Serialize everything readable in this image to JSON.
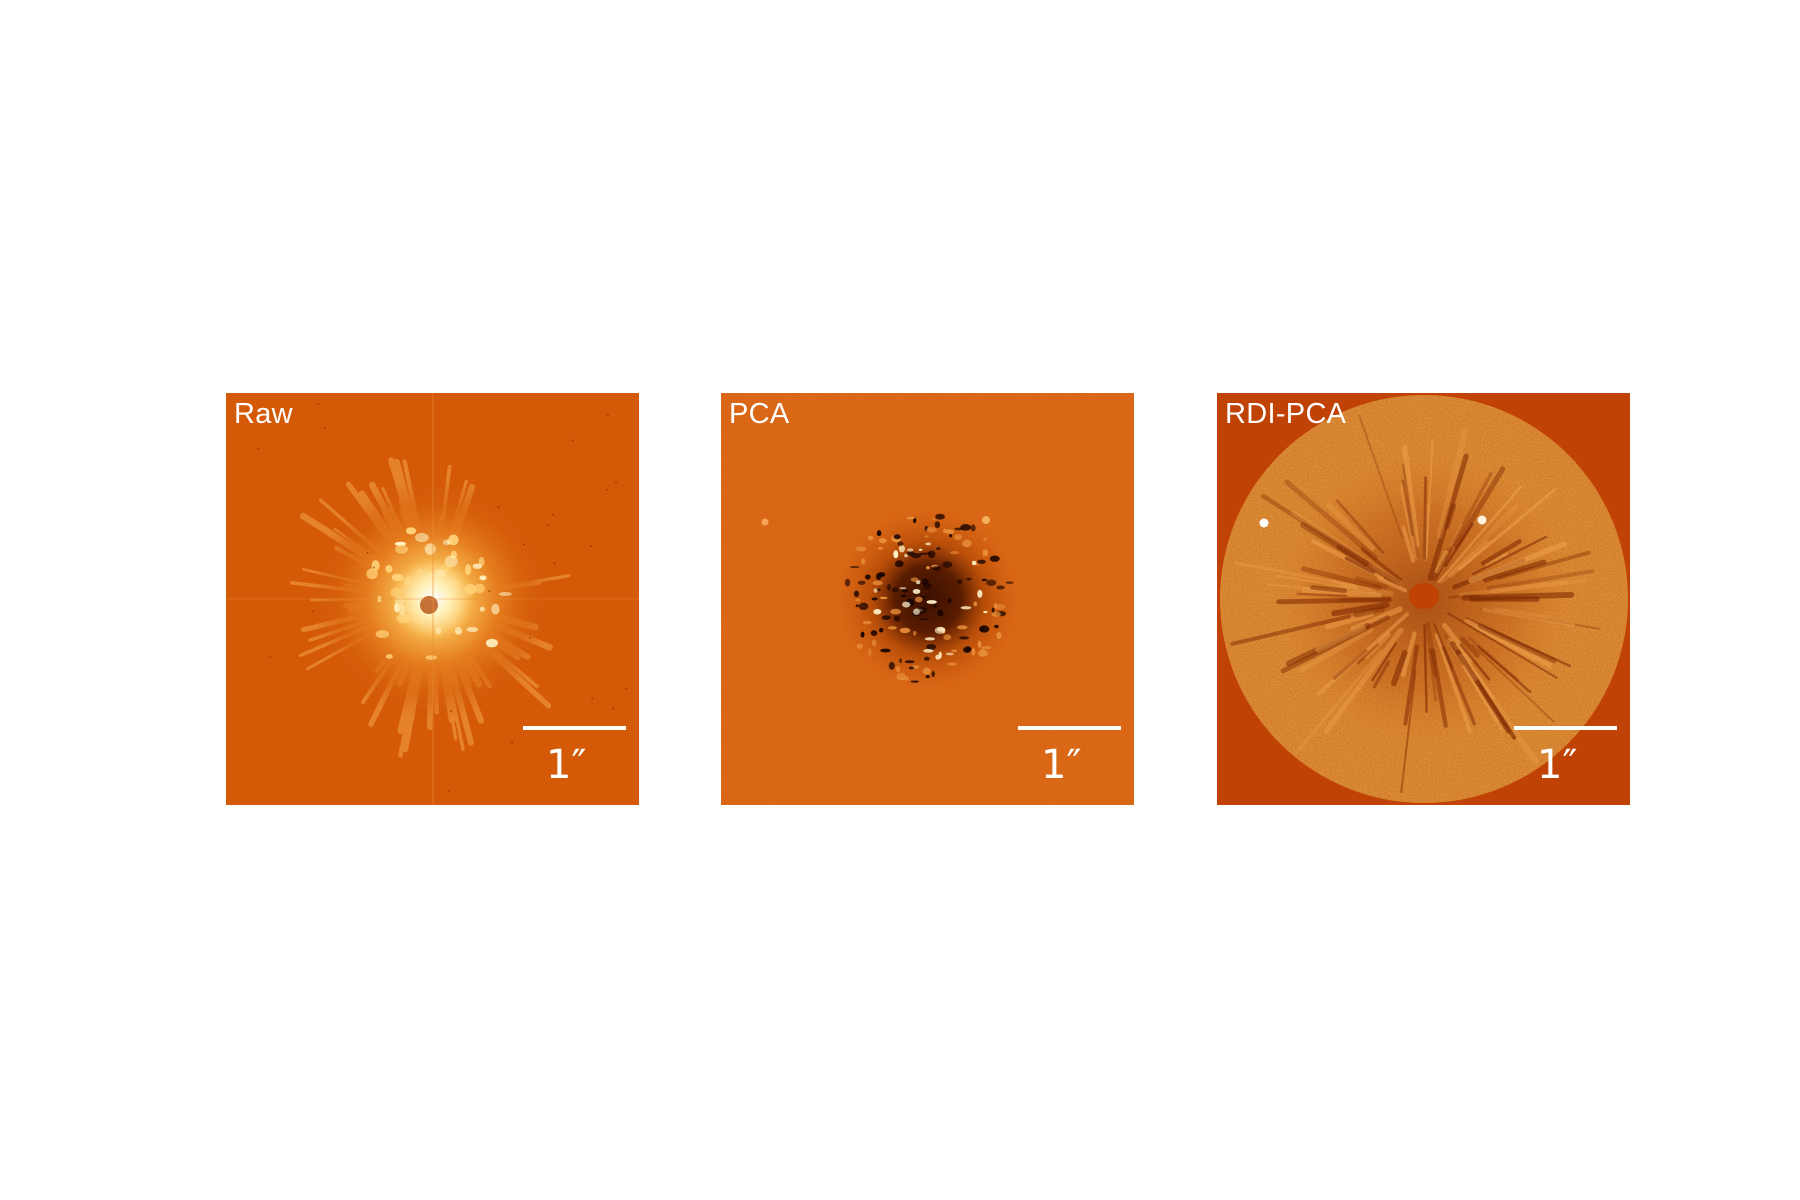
{
  "figure": {
    "panels": [
      {
        "label": "Raw",
        "scale_bar_label": "1″",
        "colors": {
          "background": "#d45a08",
          "center": "#fff5d2"
        }
      },
      {
        "label": "PCA",
        "scale_bar_label": "1″",
        "colors": {
          "background": "#d65e0c",
          "center": "#2a0a00"
        }
      },
      {
        "label": "RDI-PCA",
        "scale_bar_label": "1″",
        "colors": {
          "background": "#c04204",
          "disk": "#cf6a18"
        }
      }
    ]
  }
}
